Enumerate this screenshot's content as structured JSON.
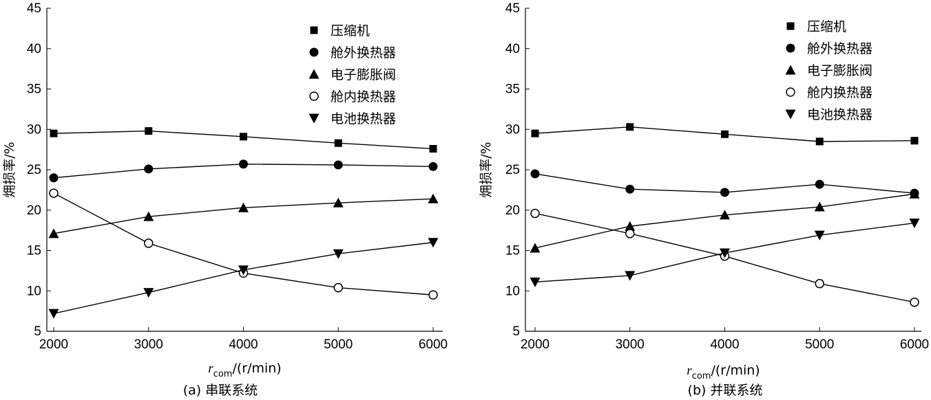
{
  "chart_data": [
    {
      "type": "line",
      "caption": "(a) 串联系统",
      "ylabel": "㶲损率/%",
      "xlabel_var": "r",
      "xlabel_sub": "com",
      "xlabel_unit": "/(r/min)",
      "x": [
        2000,
        3000,
        4000,
        5000,
        6000
      ],
      "xticks": [
        "2000",
        "3000",
        "4000",
        "5000",
        "6000"
      ],
      "ylim": [
        5,
        45
      ],
      "yticks": [
        "5",
        "10",
        "15",
        "20",
        "25",
        "30",
        "35",
        "40",
        "45"
      ],
      "legend_position": "top-right",
      "series": [
        {
          "name": "压缩机",
          "marker": "square",
          "values": [
            29.5,
            29.8,
            29.1,
            28.3,
            27.6
          ]
        },
        {
          "name": "舱外换热器",
          "marker": "circle",
          "values": [
            24.0,
            25.1,
            25.7,
            25.6,
            25.4
          ]
        },
        {
          "name": "电子膨胀阀",
          "marker": "triangle-up",
          "values": [
            17.1,
            19.2,
            20.3,
            20.9,
            21.4
          ]
        },
        {
          "name": "舱内换热器",
          "marker": "circle-open",
          "values": [
            22.1,
            15.9,
            12.2,
            10.4,
            9.5
          ]
        },
        {
          "name": "电池换热器",
          "marker": "triangle-down",
          "values": [
            7.2,
            9.8,
            12.6,
            14.6,
            16.0
          ]
        }
      ]
    },
    {
      "type": "line",
      "caption": "(b) 并联系统",
      "ylabel": "㶲损率/%",
      "xlabel_var": "r",
      "xlabel_sub": "com",
      "xlabel_unit": "/(r/min)",
      "x": [
        2000,
        3000,
        4000,
        5000,
        6000
      ],
      "xticks": [
        "2000",
        "3000",
        "4000",
        "5000",
        "6000"
      ],
      "ylim": [
        5,
        45
      ],
      "yticks": [
        "5",
        "10",
        "15",
        "20",
        "25",
        "30",
        "35",
        "40",
        "45"
      ],
      "legend_position": "top-right",
      "series": [
        {
          "name": "压缩机",
          "marker": "square",
          "values": [
            29.5,
            30.3,
            29.4,
            28.5,
            28.6
          ]
        },
        {
          "name": "舱外换热器",
          "marker": "circle",
          "values": [
            24.5,
            22.6,
            22.2,
            23.2,
            22.1
          ]
        },
        {
          "name": "电子膨胀阀",
          "marker": "triangle-up",
          "values": [
            15.3,
            18.0,
            19.4,
            20.4,
            22.0
          ]
        },
        {
          "name": "舱内换热器",
          "marker": "circle-open",
          "values": [
            19.6,
            17.1,
            14.3,
            10.9,
            8.6
          ]
        },
        {
          "name": "电池换热器",
          "marker": "triangle-down",
          "values": [
            11.1,
            11.9,
            14.7,
            16.9,
            18.4
          ]
        }
      ]
    }
  ]
}
